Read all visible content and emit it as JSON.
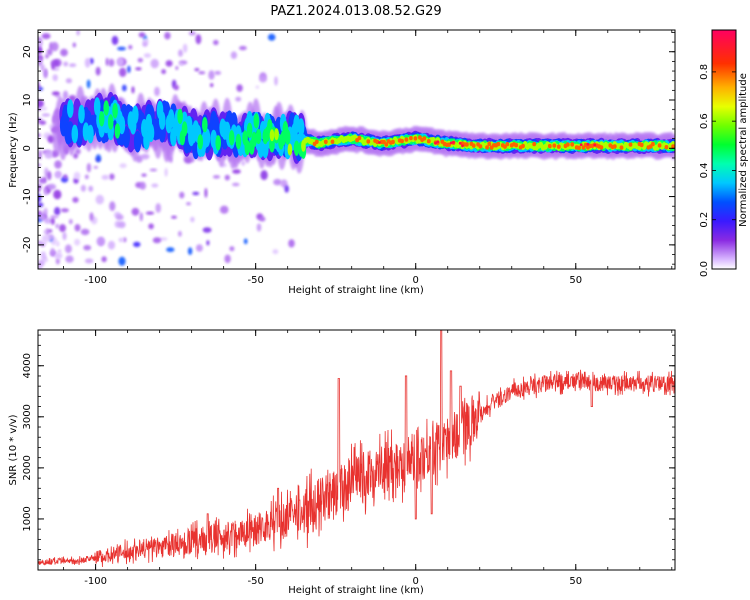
{
  "title": "PAZ1.2024.013.08.52.G29",
  "chart_data": [
    {
      "type": "heatmap",
      "xlabel": "Height of straight line (km)",
      "ylabel": "Frequency (Hz)",
      "xlim": [
        -118,
        81
      ],
      "ylim": [
        -25,
        24.5
      ],
      "x_ticks": [
        -100,
        -50,
        0,
        50
      ],
      "y_ticks": [
        -20,
        -10,
        0,
        10,
        20
      ],
      "colorbar": {
        "label": "Normalized spectral amplitude",
        "range": [
          0,
          0.97
        ],
        "ticks": [
          0.0,
          0.2,
          0.4,
          0.6,
          0.8
        ]
      },
      "ridge": [
        {
          "x": -110,
          "y": 5,
          "amp": 0.3
        },
        {
          "x": -100,
          "y": 6,
          "amp": 0.35
        },
        {
          "x": -95,
          "y": 6.5,
          "amp": 0.55
        },
        {
          "x": -90,
          "y": 4,
          "amp": 0.35
        },
        {
          "x": -80,
          "y": 5,
          "amp": 0.4
        },
        {
          "x": -70,
          "y": 3,
          "amp": 0.45
        },
        {
          "x": -60,
          "y": 3,
          "amp": 0.45
        },
        {
          "x": -50,
          "y": 3,
          "amp": 0.5
        },
        {
          "x": -40,
          "y": 2.5,
          "amp": 0.55
        },
        {
          "x": -30,
          "y": 1,
          "amp": 0.75
        },
        {
          "x": -20,
          "y": 2,
          "amp": 0.7
        },
        {
          "x": -10,
          "y": 1,
          "amp": 0.85
        },
        {
          "x": 0,
          "y": 2,
          "amp": 0.75
        },
        {
          "x": 10,
          "y": 1,
          "amp": 0.85
        },
        {
          "x": 20,
          "y": 0.5,
          "amp": 0.8
        },
        {
          "x": 30,
          "y": 0.5,
          "amp": 0.8
        },
        {
          "x": 40,
          "y": 0.5,
          "amp": 0.8
        },
        {
          "x": 50,
          "y": 0.5,
          "amp": 0.8
        },
        {
          "x": 55,
          "y": 0.5,
          "amp": 0.9
        },
        {
          "x": 60,
          "y": 0.5,
          "amp": 0.75
        },
        {
          "x": 70,
          "y": 0.5,
          "amp": 0.75
        },
        {
          "x": 81,
          "y": 0.5,
          "amp": 0.75
        }
      ]
    },
    {
      "type": "line",
      "xlabel": "Height of straight line (km)",
      "ylabel": "SNR (10 * v/v)",
      "xlim": [
        -118,
        81
      ],
      "ylim": [
        0,
        4700
      ],
      "x_ticks": [
        -100,
        -50,
        0,
        50
      ],
      "y_ticks": [
        1000,
        2000,
        3000,
        4000
      ],
      "color": "#e8322f",
      "trend": [
        {
          "x": -118,
          "y": 150
        },
        {
          "x": -105,
          "y": 180
        },
        {
          "x": -100,
          "y": 250
        },
        {
          "x": -90,
          "y": 350
        },
        {
          "x": -80,
          "y": 450
        },
        {
          "x": -70,
          "y": 550
        },
        {
          "x": -60,
          "y": 650
        },
        {
          "x": -50,
          "y": 800
        },
        {
          "x": -40,
          "y": 1000
        },
        {
          "x": -30,
          "y": 1300
        },
        {
          "x": -20,
          "y": 1700
        },
        {
          "x": -10,
          "y": 2000
        },
        {
          "x": 0,
          "y": 2200
        },
        {
          "x": 10,
          "y": 2500
        },
        {
          "x": 20,
          "y": 3100
        },
        {
          "x": 30,
          "y": 3500
        },
        {
          "x": 40,
          "y": 3650
        },
        {
          "x": 50,
          "y": 3700
        },
        {
          "x": 60,
          "y": 3650
        },
        {
          "x": 70,
          "y": 3650
        },
        {
          "x": 81,
          "y": 3650
        }
      ],
      "spikes": [
        {
          "x": -65,
          "y": 1100
        },
        {
          "x": -43,
          "y": 1600
        },
        {
          "x": -24,
          "y": 3750
        },
        {
          "x": -3,
          "y": 3800
        },
        {
          "x": 0,
          "y": 4000
        },
        {
          "x": 8,
          "y": 4700
        },
        {
          "x": 11,
          "y": 3900
        },
        {
          "x": 14,
          "y": 3600
        }
      ],
      "dips": [
        {
          "x": 0,
          "y": 1000
        },
        {
          "x": 5,
          "y": 1100
        },
        {
          "x": 55,
          "y": 3200
        }
      ]
    }
  ]
}
